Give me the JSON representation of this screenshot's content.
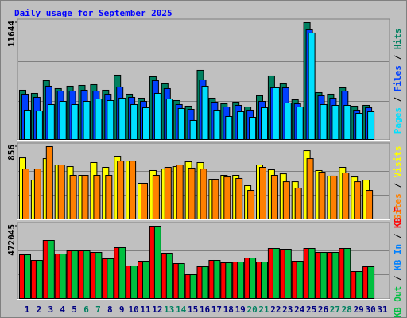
{
  "title": "Daily usage for September 2025",
  "legend_separator": " / ",
  "chart_data": [
    {
      "type": "bar",
      "ylim": [
        0,
        11644
      ],
      "yticks": [
        11644
      ],
      "series": [
        {
          "name": "Hits",
          "color": "#008060",
          "values": [
            4958,
            4643,
            5903,
            5116,
            5352,
            5430,
            5509,
            4958,
            6453,
            4565,
            4171,
            6296,
            5588,
            3935,
            3384,
            6926,
            4171,
            3620,
            3778,
            3305,
            4407,
            6375,
            5588,
            4014,
            11644,
            4722,
            4565,
            5194,
            3384,
            3463,
            0
          ]
        },
        {
          "name": "Files",
          "color": "#0040ff",
          "values": [
            4565,
            4250,
            5352,
            4879,
            4879,
            4958,
            4879,
            4565,
            5273,
            4250,
            3856,
            5903,
            5116,
            3542,
            3069,
            5981,
            3778,
            3305,
            3463,
            2991,
            3856,
            5194,
            5194,
            3620,
            10939,
            4407,
            4171,
            4879,
            2991,
            3227,
            0
          ]
        },
        {
          "name": "Pages",
          "color": "#00e0ff",
          "values": [
            2991,
            2912,
            3542,
            3856,
            3542,
            3856,
            4092,
            3935,
            4171,
            3542,
            3227,
            4643,
            4092,
            3148,
            1968,
            5352,
            2991,
            2361,
            2833,
            2282,
            3227,
            5194,
            3699,
            3305,
            10625,
            3542,
            3463,
            3463,
            2676,
            2833,
            0
          ]
        }
      ]
    },
    {
      "type": "bar",
      "ylim": [
        0,
        856
      ],
      "yticks": [
        856
      ],
      "series": [
        {
          "name": "Visits",
          "color": "#ffff00",
          "values": [
            725,
            465,
            716,
            642,
            623,
            521,
            670,
            614,
            744,
            688,
            428,
            577,
            595,
            623,
            679,
            670,
            474,
            521,
            521,
            400,
            642,
            586,
            539,
            446,
            809,
            577,
            512,
            614,
            502,
            465,
            0
          ]
        },
        {
          "name": "Sites",
          "color": "#ff8000",
          "values": [
            595,
            595,
            856,
            642,
            521,
            521,
            521,
            521,
            688,
            688,
            428,
            521,
            614,
            642,
            605,
            595,
            474,
            502,
            484,
            344,
            614,
            521,
            446,
            372,
            716,
            558,
            512,
            549,
            446,
            344,
            0
          ]
        }
      ]
    },
    {
      "type": "bar",
      "ylim": [
        0,
        472045
      ],
      "yticks": [
        472045
      ],
      "categories": [
        "1",
        "2",
        "3",
        "4",
        "5",
        "6",
        "7",
        "8",
        "9",
        "10",
        "11",
        "12",
        "13",
        "14",
        "15",
        "16",
        "17",
        "18",
        "19",
        "20",
        "21",
        "22",
        "23",
        "24",
        "25",
        "26",
        "27",
        "28",
        "29",
        "30",
        "31"
      ],
      "category_colors": [
        "#000080",
        "#000080",
        "#000080",
        "#000080",
        "#000080",
        "#008060",
        "#008060",
        "#000080",
        "#000080",
        "#000080",
        "#000080",
        "#000080",
        "#008060",
        "#008060",
        "#000080",
        "#000080",
        "#000080",
        "#000080",
        "#000080",
        "#008060",
        "#008060",
        "#000080",
        "#000080",
        "#000080",
        "#000080",
        "#000080",
        "#008060",
        "#008060",
        "#000080",
        "#000080",
        "#000080"
      ],
      "series": [
        {
          "name": "KB F",
          "color": "#ff0000",
          "values": [
            287336,
            251419,
            379694,
            292467,
            312991,
            312991,
            302729,
            261681,
            333515,
            215502,
            246288,
            472045,
            297598,
            230895,
            159061,
            210371,
            251419,
            236026,
            241157,
            266812,
            241157,
            328384,
            323253,
            246288,
            328384,
            302729,
            302729,
            328384,
            179585,
            210371,
            0
          ]
        },
        {
          "name": "KB In",
          "color": "#0080ff",
          "values": [
            0,
            0,
            0,
            0,
            0,
            0,
            0,
            0,
            0,
            0,
            0,
            0,
            0,
            0,
            0,
            0,
            0,
            0,
            0,
            0,
            0,
            0,
            0,
            0,
            0,
            0,
            0,
            0,
            0,
            0,
            0
          ]
        },
        {
          "name": "KB Out",
          "color": "#00c040",
          "values": [
            287336,
            251419,
            379694,
            292467,
            312991,
            312991,
            302729,
            261681,
            333515,
            215502,
            246288,
            472045,
            297598,
            230895,
            159061,
            210371,
            251419,
            236026,
            241157,
            266812,
            241157,
            328384,
            323253,
            246288,
            328384,
            302729,
            302729,
            328384,
            179585,
            210371,
            0
          ]
        }
      ]
    }
  ]
}
